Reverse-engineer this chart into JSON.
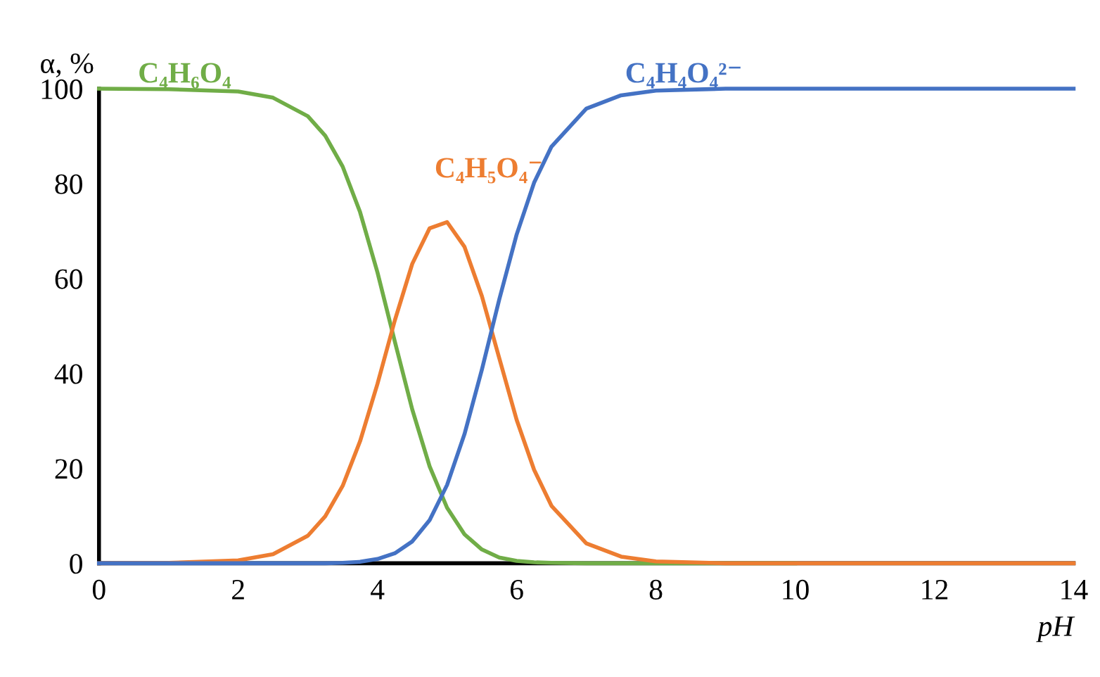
{
  "chart_data": {
    "type": "line",
    "ylabel": "α, %",
    "xlabel": "pH",
    "x": [
      0,
      1,
      2,
      2.5,
      3,
      3.25,
      3.5,
      3.75,
      4,
      4.25,
      4.5,
      4.75,
      5,
      5.25,
      5.5,
      5.75,
      6,
      6.25,
      6.5,
      7,
      7.5,
      8,
      9,
      10,
      12,
      14
    ],
    "series": [
      {
        "name": "C₄H₆O₄",
        "color": "#70ad47",
        "values": [
          100,
          99.9,
          99.4,
          98.1,
          94.2,
          90.1,
          83.6,
          74.0,
          61.3,
          46.7,
          32.4,
          20.4,
          11.7,
          6.1,
          2.9,
          1.2,
          0.5,
          0.2,
          0.1,
          0,
          0,
          0,
          0,
          0,
          null,
          null
        ]
      },
      {
        "name": "C₄H₅O₄⁻",
        "color": "#ed7d31",
        "values": [
          0,
          0.1,
          0.6,
          1.9,
          5.8,
          9.9,
          16.3,
          25.7,
          37.8,
          51.2,
          63.1,
          70.6,
          71.9,
          66.7,
          56.3,
          43.2,
          30.2,
          19.7,
          12.1,
          4.2,
          1.4,
          0.4,
          0,
          0,
          0,
          0
        ]
      },
      {
        "name": "C₄H₄O₄²⁻",
        "color": "#4472c4",
        "values": [
          0,
          0,
          0,
          0,
          0,
          0,
          0.1,
          0.3,
          0.9,
          2.1,
          4.6,
          9.1,
          16.5,
          27.2,
          40.8,
          55.6,
          69.3,
          80.2,
          87.8,
          95.8,
          98.6,
          99.6,
          100,
          100,
          100,
          100
        ]
      }
    ],
    "xlim": [
      0,
      14
    ],
    "xticks": [
      0,
      2,
      4,
      6,
      8,
      10,
      12,
      14
    ],
    "ylim": [
      0,
      100
    ],
    "yticks": [
      0,
      20,
      40,
      60,
      80,
      100
    ],
    "grid": false,
    "legend": false,
    "marker": "none",
    "line_style": "solid"
  }
}
